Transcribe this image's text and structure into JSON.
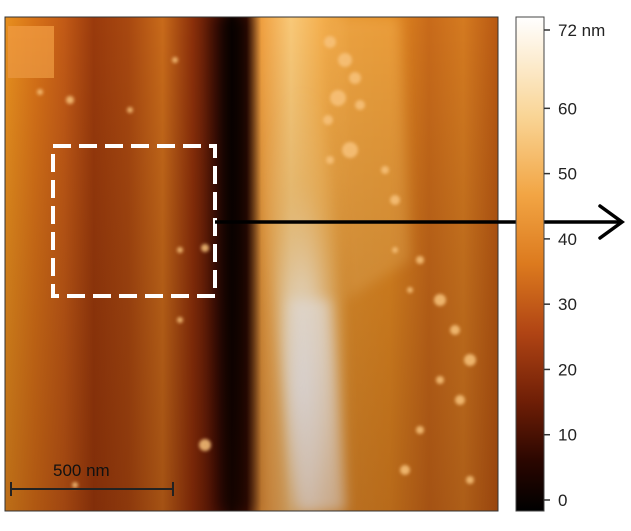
{
  "scale_bar": {
    "label": "500 nm"
  },
  "colorbar": {
    "max_label": "72 nm",
    "ticks": [
      {
        "value": 60,
        "label": "60"
      },
      {
        "value": 50,
        "label": "50"
      },
      {
        "value": 40,
        "label": "40"
      },
      {
        "value": 30,
        "label": "30"
      },
      {
        "value": 20,
        "label": "20"
      },
      {
        "value": 10,
        "label": "10"
      },
      {
        "value": 0,
        "label": "0"
      }
    ],
    "min": 0,
    "max": 72,
    "unit": "nm"
  },
  "colors": {
    "colormap": [
      "#000000",
      "#3a0a00",
      "#7a2408",
      "#b84a14",
      "#e0801e",
      "#f6b25a",
      "#fbe2b4",
      "#ffffff"
    ],
    "selection_box": "#ffffff",
    "arrow": "#000000",
    "scale_bar": "#222222"
  }
}
